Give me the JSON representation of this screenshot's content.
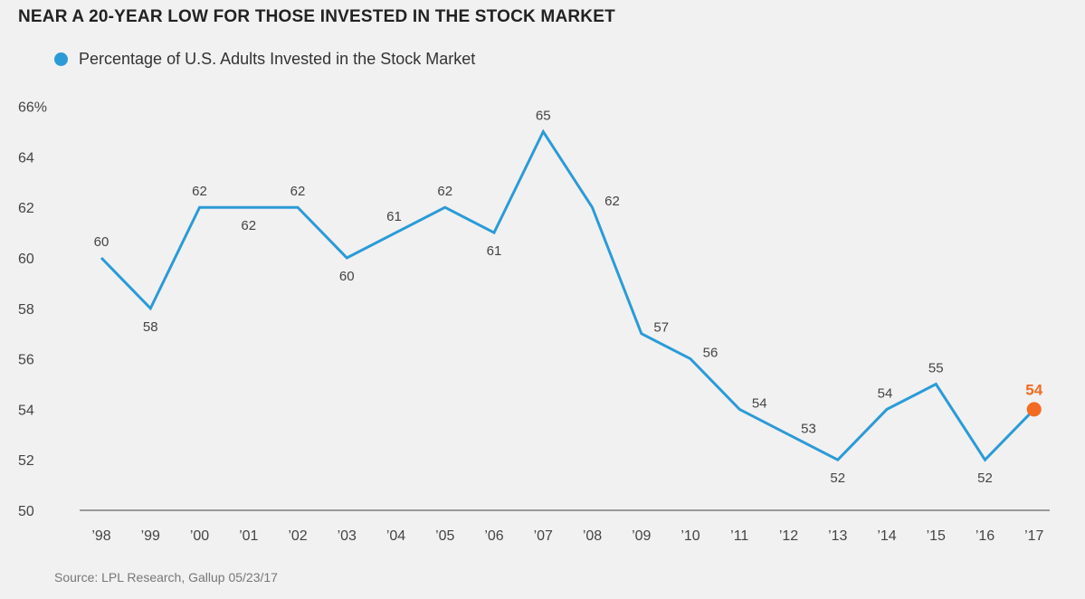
{
  "colors": {
    "line": "#2b9bd6",
    "highlight": "#f26b21",
    "axis": "#444444"
  },
  "chart_data": {
    "type": "line",
    "title": "NEAR A 20-YEAR LOW FOR THOSE INVESTED IN THE STOCK MARKET",
    "categories": [
      "’98",
      "’99",
      "’00",
      "’01",
      "’02",
      "’03",
      "’04",
      "’05",
      "’06",
      "’07",
      "’08",
      "’09",
      "’10",
      "’11",
      "’12",
      "’13",
      "’14",
      "’15",
      "’16",
      "’17"
    ],
    "series": [
      {
        "name": "Percentage of U.S. Adults Invested in the Stock Market",
        "values": [
          60,
          58,
          62,
          62,
          62,
          60,
          61,
          62,
          61,
          65,
          62,
          57,
          56,
          54,
          53,
          52,
          54,
          55,
          52,
          54
        ],
        "labels": [
          "60",
          "58",
          "62",
          "62",
          "62",
          "60",
          "61",
          "62",
          "61",
          "65",
          "62",
          "57",
          "56",
          "54",
          "53",
          "52",
          "54",
          "55",
          "52",
          "54"
        ]
      }
    ],
    "ylim": [
      50,
      66
    ],
    "yticks": [
      "50",
      "52",
      "54",
      "56",
      "58",
      "60",
      "62",
      "64",
      "66%"
    ],
    "grid": false,
    "legend": "top-left",
    "highlight_last_point": true
  },
  "source": "Source: LPL Research, Gallup   05/23/17"
}
